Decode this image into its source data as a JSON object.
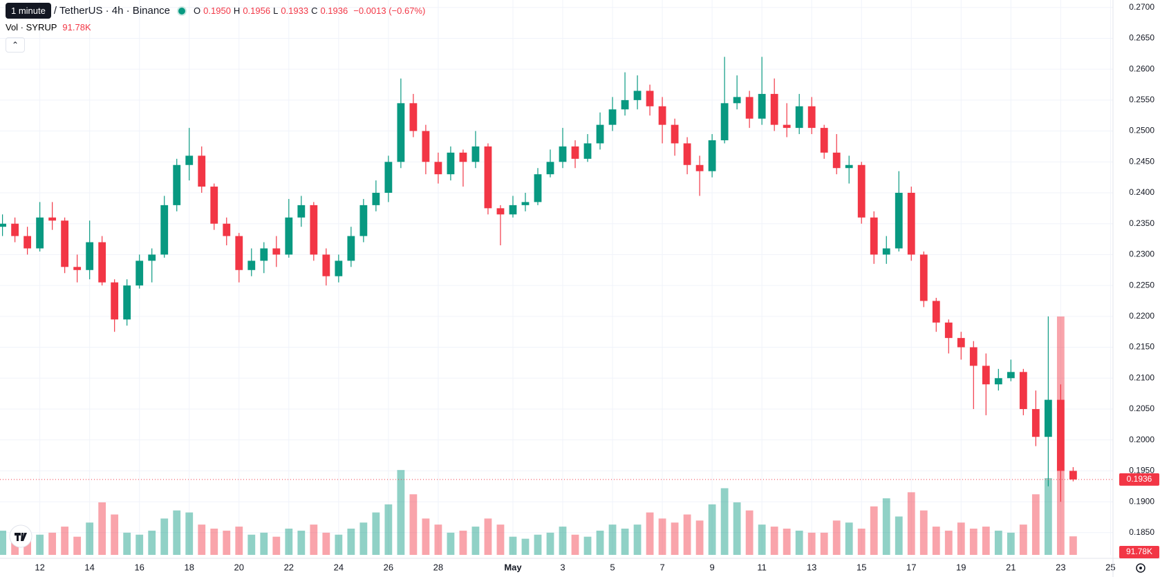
{
  "header": {
    "tooltip": "1 minute",
    "symbol": "/ TetherUS · 4h · Binance",
    "o_label": "O",
    "open": "0.1950",
    "h_label": "H",
    "high": "0.1956",
    "l_label": "L",
    "low": "0.1933",
    "c_label": "C",
    "close": "0.1936",
    "change": "−0.0013 (−0.67%)",
    "vol_label": "Vol · SYRUP",
    "vol_value": "91.78K"
  },
  "chart_data": {
    "type": "candlestick",
    "up_color": "#089981",
    "down_color": "#f23645",
    "grid": true,
    "xlim": [
      10.4,
      55.1
    ],
    "ylim": [
      0.1814,
      0.2712
    ],
    "xticks": [
      {
        "value": 12,
        "label": "12"
      },
      {
        "value": 14,
        "label": "14"
      },
      {
        "value": 16,
        "label": "16"
      },
      {
        "value": 18,
        "label": "18"
      },
      {
        "value": 20,
        "label": "20"
      },
      {
        "value": 22,
        "label": "22"
      },
      {
        "value": 24,
        "label": "24"
      },
      {
        "value": 26,
        "label": "26"
      },
      {
        "value": 28,
        "label": "28"
      },
      {
        "value": 31,
        "label": "May"
      },
      {
        "value": 33,
        "label": "3"
      },
      {
        "value": 35,
        "label": "5"
      },
      {
        "value": 37,
        "label": "7"
      },
      {
        "value": 39,
        "label": "9"
      },
      {
        "value": 41,
        "label": "11"
      },
      {
        "value": 43,
        "label": "13"
      },
      {
        "value": 45,
        "label": "15"
      },
      {
        "value": 47,
        "label": "17"
      },
      {
        "value": 49,
        "label": "19"
      },
      {
        "value": 51,
        "label": "21"
      },
      {
        "value": 53,
        "label": "23"
      },
      {
        "value": 55,
        "label": "25"
      }
    ],
    "yticks": [
      {
        "value": 0.185,
        "label": "0.1850"
      },
      {
        "value": 0.19,
        "label": "0.1900"
      },
      {
        "value": 0.195,
        "label": "0.1950"
      },
      {
        "value": 0.2,
        "label": "0.2000"
      },
      {
        "value": 0.205,
        "label": "0.2050"
      },
      {
        "value": 0.21,
        "label": "0.2100"
      },
      {
        "value": 0.215,
        "label": "0.2150"
      },
      {
        "value": 0.22,
        "label": "0.2200"
      },
      {
        "value": 0.225,
        "label": "0.2250"
      },
      {
        "value": 0.23,
        "label": "0.2300"
      },
      {
        "value": 0.235,
        "label": "0.2350"
      },
      {
        "value": 0.24,
        "label": "0.2400"
      },
      {
        "value": 0.245,
        "label": "0.2450"
      },
      {
        "value": 0.25,
        "label": "0.2500"
      },
      {
        "value": 0.255,
        "label": "0.2550"
      },
      {
        "value": 0.26,
        "label": "0.2600"
      },
      {
        "value": 0.265,
        "label": "0.2650"
      },
      {
        "value": 0.27,
        "label": "0.2700"
      }
    ],
    "ohlc": [
      [
        10.5,
        0.2345,
        0.2365,
        0.233,
        0.235
      ],
      [
        11,
        0.235,
        0.236,
        0.232,
        0.233
      ],
      [
        11.5,
        0.233,
        0.2345,
        0.23,
        0.231
      ],
      [
        12,
        0.231,
        0.2385,
        0.2305,
        0.236
      ],
      [
        12.5,
        0.236,
        0.2385,
        0.234,
        0.2355
      ],
      [
        13,
        0.2355,
        0.236,
        0.227,
        0.228
      ],
      [
        13.5,
        0.228,
        0.23,
        0.2255,
        0.2275
      ],
      [
        14,
        0.2275,
        0.2355,
        0.226,
        0.232
      ],
      [
        14.5,
        0.232,
        0.233,
        0.225,
        0.2255
      ],
      [
        15,
        0.2255,
        0.226,
        0.2175,
        0.2195
      ],
      [
        15.5,
        0.2195,
        0.226,
        0.2185,
        0.225
      ],
      [
        16,
        0.225,
        0.23,
        0.2245,
        0.229
      ],
      [
        16.5,
        0.229,
        0.231,
        0.2255,
        0.23
      ],
      [
        17,
        0.23,
        0.2395,
        0.2295,
        0.238
      ],
      [
        17.5,
        0.238,
        0.2455,
        0.237,
        0.2445
      ],
      [
        18,
        0.2445,
        0.2505,
        0.242,
        0.246
      ],
      [
        18.5,
        0.246,
        0.2475,
        0.24,
        0.241
      ],
      [
        19,
        0.241,
        0.2415,
        0.234,
        0.235
      ],
      [
        19.5,
        0.235,
        0.236,
        0.2315,
        0.233
      ],
      [
        20,
        0.233,
        0.2335,
        0.2255,
        0.2275
      ],
      [
        20.5,
        0.2275,
        0.231,
        0.2265,
        0.229
      ],
      [
        21,
        0.229,
        0.232,
        0.227,
        0.231
      ],
      [
        21.5,
        0.231,
        0.233,
        0.228,
        0.23
      ],
      [
        22,
        0.23,
        0.239,
        0.2295,
        0.236
      ],
      [
        22.5,
        0.236,
        0.2395,
        0.2345,
        0.238
      ],
      [
        23,
        0.238,
        0.2385,
        0.229,
        0.23
      ],
      [
        23.5,
        0.23,
        0.231,
        0.225,
        0.2265
      ],
      [
        24,
        0.2265,
        0.23,
        0.2255,
        0.229
      ],
      [
        24.5,
        0.229,
        0.2345,
        0.228,
        0.233
      ],
      [
        25,
        0.233,
        0.239,
        0.232,
        0.238
      ],
      [
        25.5,
        0.238,
        0.242,
        0.237,
        0.24
      ],
      [
        26,
        0.24,
        0.246,
        0.2385,
        0.245
      ],
      [
        26.5,
        0.245,
        0.2585,
        0.244,
        0.2545
      ],
      [
        27,
        0.2545,
        0.256,
        0.249,
        0.25
      ],
      [
        27.5,
        0.25,
        0.251,
        0.243,
        0.245
      ],
      [
        28,
        0.245,
        0.2465,
        0.2415,
        0.243
      ],
      [
        28.5,
        0.243,
        0.2475,
        0.242,
        0.2465
      ],
      [
        29,
        0.2465,
        0.247,
        0.241,
        0.245
      ],
      [
        29.5,
        0.245,
        0.25,
        0.244,
        0.2475
      ],
      [
        30,
        0.2475,
        0.248,
        0.2365,
        0.2375
      ],
      [
        30.5,
        0.2375,
        0.238,
        0.2315,
        0.2365
      ],
      [
        31,
        0.2365,
        0.2395,
        0.236,
        0.238
      ],
      [
        31.5,
        0.238,
        0.24,
        0.237,
        0.2385
      ],
      [
        32,
        0.2385,
        0.244,
        0.238,
        0.243
      ],
      [
        32.5,
        0.243,
        0.247,
        0.2425,
        0.245
      ],
      [
        33,
        0.245,
        0.2505,
        0.244,
        0.2475
      ],
      [
        33.5,
        0.2475,
        0.2485,
        0.244,
        0.2455
      ],
      [
        34,
        0.2455,
        0.2495,
        0.245,
        0.248
      ],
      [
        34.5,
        0.248,
        0.253,
        0.247,
        0.251
      ],
      [
        35,
        0.251,
        0.2555,
        0.25,
        0.2535
      ],
      [
        35.5,
        0.2535,
        0.2595,
        0.2525,
        0.255
      ],
      [
        36,
        0.255,
        0.259,
        0.2535,
        0.2565
      ],
      [
        36.5,
        0.2565,
        0.2575,
        0.2525,
        0.254
      ],
      [
        37,
        0.254,
        0.2555,
        0.248,
        0.251
      ],
      [
        37.5,
        0.251,
        0.252,
        0.246,
        0.248
      ],
      [
        38,
        0.248,
        0.249,
        0.243,
        0.2445
      ],
      [
        38.5,
        0.2445,
        0.246,
        0.2395,
        0.2435
      ],
      [
        39,
        0.2435,
        0.2495,
        0.2425,
        0.2485
      ],
      [
        39.5,
        0.2485,
        0.262,
        0.248,
        0.2545
      ],
      [
        40,
        0.2545,
        0.259,
        0.2535,
        0.2555
      ],
      [
        40.5,
        0.2555,
        0.2565,
        0.2505,
        0.252
      ],
      [
        41,
        0.252,
        0.262,
        0.251,
        0.256
      ],
      [
        41.5,
        0.256,
        0.2585,
        0.25,
        0.251
      ],
      [
        42,
        0.251,
        0.2545,
        0.249,
        0.2505
      ],
      [
        42.5,
        0.2505,
        0.256,
        0.2495,
        0.254
      ],
      [
        43,
        0.254,
        0.2555,
        0.2495,
        0.2505
      ],
      [
        43.5,
        0.2505,
        0.251,
        0.2455,
        0.2465
      ],
      [
        44,
        0.2465,
        0.2495,
        0.243,
        0.244
      ],
      [
        44.5,
        0.244,
        0.246,
        0.2415,
        0.2445
      ],
      [
        45,
        0.2445,
        0.245,
        0.235,
        0.236
      ],
      [
        45.5,
        0.236,
        0.237,
        0.2285,
        0.23
      ],
      [
        46,
        0.23,
        0.233,
        0.2285,
        0.231
      ],
      [
        46.5,
        0.231,
        0.2435,
        0.2305,
        0.24
      ],
      [
        47,
        0.24,
        0.241,
        0.229,
        0.23
      ],
      [
        47.5,
        0.23,
        0.2305,
        0.2215,
        0.2225
      ],
      [
        48,
        0.2225,
        0.223,
        0.2175,
        0.219
      ],
      [
        48.5,
        0.219,
        0.2195,
        0.214,
        0.2165
      ],
      [
        49,
        0.2165,
        0.2175,
        0.213,
        0.215
      ],
      [
        49.5,
        0.215,
        0.216,
        0.205,
        0.212
      ],
      [
        50,
        0.212,
        0.214,
        0.204,
        0.209
      ],
      [
        50.5,
        0.209,
        0.2115,
        0.208,
        0.21
      ],
      [
        51,
        0.21,
        0.213,
        0.2095,
        0.211
      ],
      [
        51.5,
        0.211,
        0.2115,
        0.204,
        0.205
      ],
      [
        52,
        0.205,
        0.208,
        0.199,
        0.2005
      ],
      [
        52.5,
        0.2005,
        0.22,
        0.1925,
        0.2065
      ],
      [
        53,
        0.2065,
        0.209,
        0.19,
        0.195
      ],
      [
        53.5,
        0.195,
        0.1956,
        0.1933,
        0.1936
      ]
    ],
    "volume": [
      120,
      90,
      80,
      100,
      110,
      140,
      90,
      160,
      260,
      200,
      110,
      100,
      120,
      180,
      220,
      210,
      150,
      130,
      120,
      140,
      100,
      110,
      90,
      130,
      120,
      150,
      110,
      100,
      130,
      160,
      210,
      250,
      420,
      300,
      180,
      150,
      110,
      120,
      140,
      180,
      150,
      90,
      80,
      100,
      110,
      140,
      100,
      90,
      120,
      150,
      130,
      150,
      210,
      180,
      160,
      200,
      170,
      250,
      330,
      260,
      220,
      150,
      140,
      130,
      120,
      110,
      110,
      170,
      160,
      130,
      240,
      280,
      190,
      310,
      220,
      140,
      120,
      160,
      130,
      140,
      120,
      110,
      150,
      300,
      380,
      1180,
      91.78
    ]
  }
}
